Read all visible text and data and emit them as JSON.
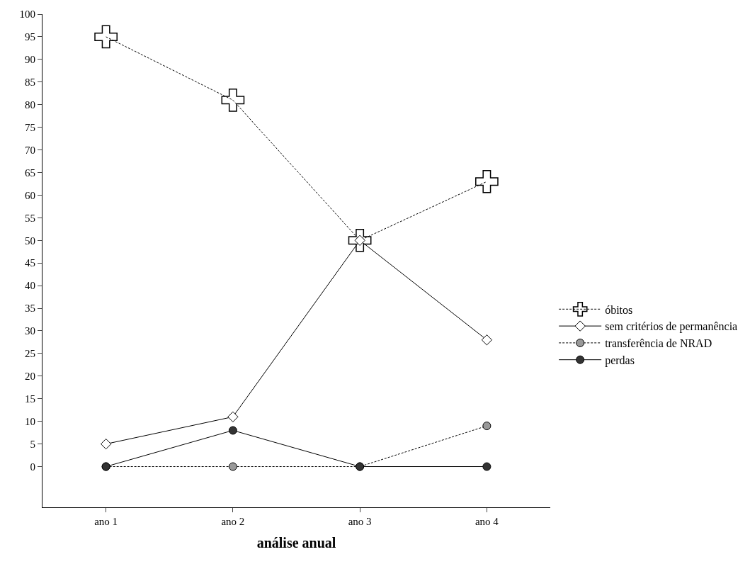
{
  "chart_data": {
    "type": "line",
    "xlabel": "análise anual",
    "categories": [
      "ano 1",
      "ano 2",
      "ano 3",
      "ano 4"
    ],
    "series": [
      {
        "name": "óbitos",
        "color": "#000000",
        "values": [
          95,
          81,
          50,
          63
        ],
        "marker": "cross",
        "line_style": "dashed"
      },
      {
        "name": "sem critérios de permanência",
        "color": "#ffffff",
        "values": [
          5,
          11,
          50,
          28
        ],
        "marker": "diamond",
        "line_style": "solid"
      },
      {
        "name": "transferência de NRAD",
        "color": "#999999",
        "values": [
          0,
          0,
          0,
          9
        ],
        "marker": "circle",
        "line_style": "dashed"
      },
      {
        "name": "perdas",
        "color": "#333333",
        "values": [
          0,
          8,
          0,
          0
        ],
        "marker": "circle",
        "line_style": "solid"
      }
    ],
    "ylim": [
      -9,
      100
    ],
    "yticks": [
      0,
      5,
      10,
      15,
      20,
      25,
      30,
      35,
      40,
      45,
      50,
      55,
      60,
      65,
      70,
      75,
      80,
      85,
      90,
      95,
      100
    ],
    "legend": "right"
  }
}
